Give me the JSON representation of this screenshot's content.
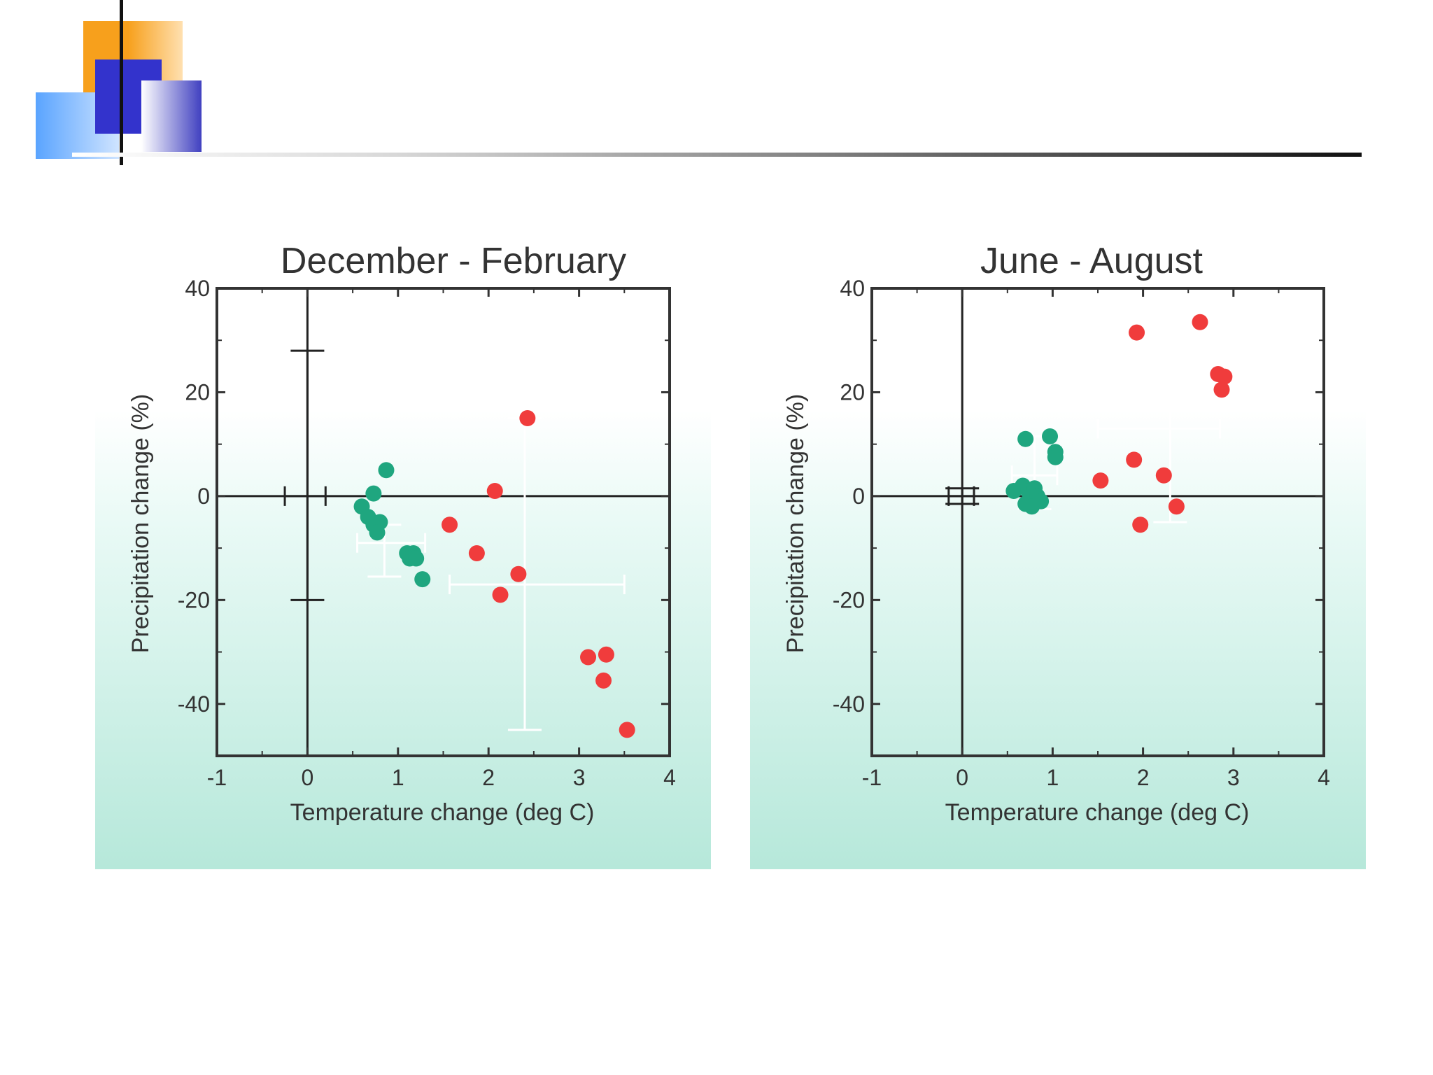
{
  "slide": {
    "accent_colors": {
      "orange": "#f7a01c",
      "blue": "#3333cc",
      "light_blue": "#66aaff",
      "rule": "#222222"
    }
  },
  "chart_data": [
    {
      "type": "scatter",
      "title": "December - February",
      "xlabel": "Temperature change (deg C)",
      "ylabel": "Precipitation change (%)",
      "xlim": [
        -1,
        4
      ],
      "ylim": [
        -50,
        40
      ],
      "xticks": [
        "-1",
        "0",
        "1",
        "2",
        "3",
        "4"
      ],
      "yticks": [
        "40",
        "20",
        "0",
        "-20",
        "-40"
      ],
      "series": [
        {
          "name": "green",
          "color": "#1fa67f",
          "points": [
            [
              0.87,
              5
            ],
            [
              0.73,
              0.5
            ],
            [
              0.6,
              -2
            ],
            [
              0.67,
              -4
            ],
            [
              0.73,
              -5.5
            ],
            [
              0.8,
              -5
            ],
            [
              0.77,
              -7
            ],
            [
              1.1,
              -11
            ],
            [
              1.17,
              -11
            ],
            [
              1.13,
              -12
            ],
            [
              1.2,
              -12
            ],
            [
              1.27,
              -16
            ]
          ]
        },
        {
          "name": "red",
          "color": "#f03c3c",
          "points": [
            [
              2.43,
              15
            ],
            [
              2.07,
              1
            ],
            [
              1.57,
              -5.5
            ],
            [
              1.87,
              -11
            ],
            [
              2.33,
              -15
            ],
            [
              2.13,
              -19
            ],
            [
              3.1,
              -31
            ],
            [
              3.3,
              -30.5
            ],
            [
              3.27,
              -35.5
            ],
            [
              3.53,
              -45
            ]
          ]
        }
      ],
      "error_bars": [
        {
          "color": "#222222",
          "x": [
            -0.25,
            0.2
          ],
          "y": [
            -20,
            28
          ],
          "center": [
            0,
            0
          ]
        },
        {
          "color": "#ffffff",
          "x": [
            0.55,
            1.3
          ],
          "y": [
            -15.5,
            -5.5
          ],
          "center": [
            0.85,
            -9
          ]
        },
        {
          "color": "#ffffff",
          "x": [
            1.57,
            3.5
          ],
          "y": [
            -45,
            15
          ],
          "center": [
            2.4,
            -17
          ]
        }
      ]
    },
    {
      "type": "scatter",
      "title": "June - August",
      "xlabel": "Temperature change (deg C)",
      "ylabel": "Precipitation change (%)",
      "xlim": [
        -1,
        4
      ],
      "ylim": [
        -50,
        40
      ],
      "xticks": [
        "-1",
        "0",
        "1",
        "2",
        "3",
        "4"
      ],
      "yticks": [
        "40",
        "20",
        "0",
        "-20",
        "-40"
      ],
      "series": [
        {
          "name": "green",
          "color": "#1fa67f",
          "points": [
            [
              0.7,
              11
            ],
            [
              0.97,
              11.5
            ],
            [
              1.03,
              8.5
            ],
            [
              1.03,
              7.5
            ],
            [
              0.57,
              1
            ],
            [
              0.67,
              2
            ],
            [
              0.73,
              1
            ],
            [
              0.8,
              1.5
            ],
            [
              0.83,
              0
            ],
            [
              0.7,
              -1.5
            ],
            [
              0.77,
              -2
            ],
            [
              0.87,
              -1
            ]
          ]
        },
        {
          "name": "red",
          "color": "#f03c3c",
          "points": [
            [
              1.93,
              31.5
            ],
            [
              2.63,
              33.5
            ],
            [
              2.83,
              23.5
            ],
            [
              2.9,
              23
            ],
            [
              2.87,
              20.5
            ],
            [
              1.9,
              7
            ],
            [
              1.53,
              3
            ],
            [
              2.23,
              4
            ],
            [
              1.97,
              -5.5
            ],
            [
              2.37,
              -2
            ]
          ]
        }
      ],
      "error_bars": [
        {
          "color": "#222222",
          "x": [
            -0.15,
            0.13
          ],
          "y": [
            -1.5,
            1.5
          ],
          "center": [
            0,
            0
          ]
        },
        {
          "color": "#ffffff",
          "x": [
            0.55,
            1.05
          ],
          "y": [
            -2.5,
            11.5
          ],
          "center": [
            0.8,
            4
          ]
        },
        {
          "color": "#ffffff",
          "x": [
            1.5,
            2.85
          ],
          "y": [
            -5,
            21
          ],
          "center": [
            2.3,
            13
          ]
        }
      ]
    }
  ]
}
